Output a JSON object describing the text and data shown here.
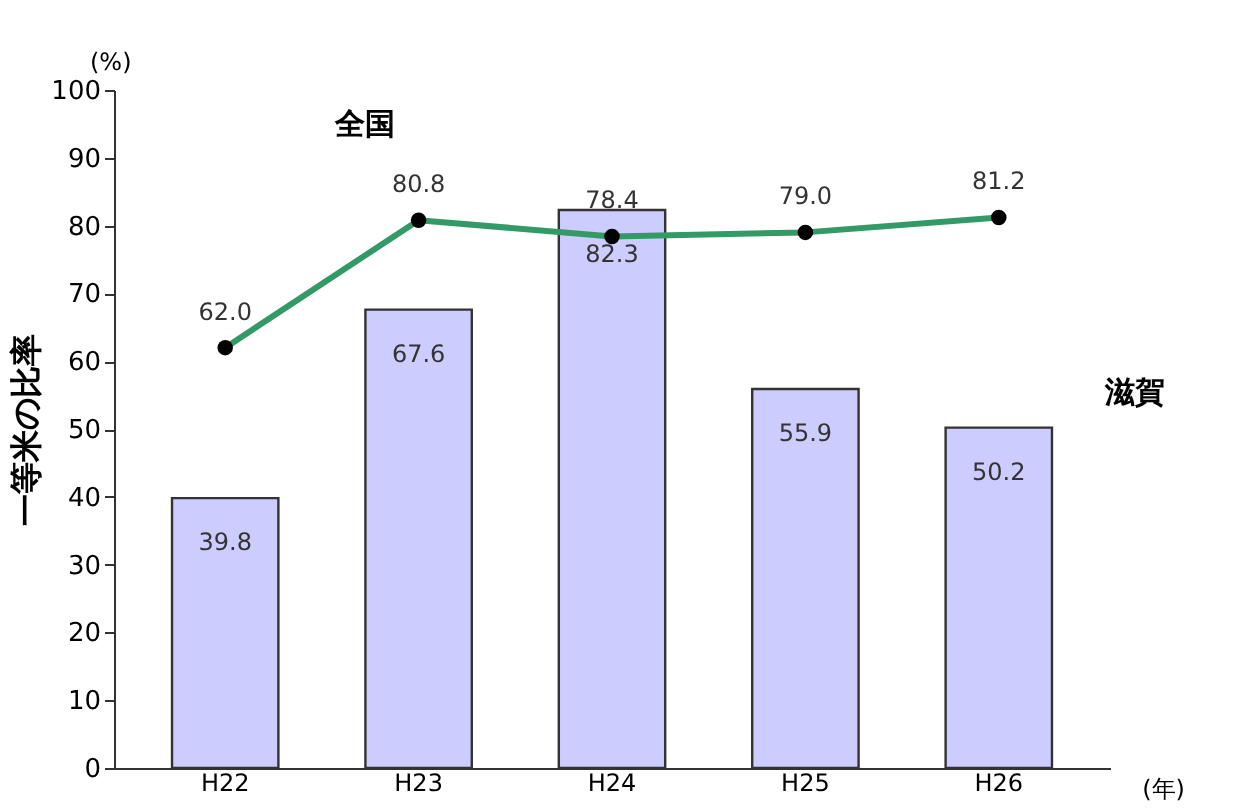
{
  "chart_data": {
    "type": "bar",
    "categories": [
      "H22",
      "H23",
      "H24",
      "H25",
      "H26"
    ],
    "ylabel": "一等米の比率",
    "xlabel": "(年)",
    "annotations": [
      "(%)"
    ],
    "ylim": [
      0,
      100
    ],
    "yticks": [
      0,
      10,
      20,
      30,
      40,
      50,
      60,
      70,
      80,
      90,
      100
    ],
    "grid": false,
    "data_labels": true,
    "series": [
      {
        "name": "滋賀",
        "color": "#ccccff",
        "values": [
          39.8,
          67.6,
          82.3,
          55.9,
          50.2
        ]
      },
      {
        "name": "全国",
        "type": "line",
        "color": "#339966",
        "marker": "circle",
        "values": [
          62.0,
          80.8,
          78.4,
          79.0,
          81.2
        ],
        "value_labels": [
          "62.0",
          "80.8",
          "78.4",
          "79.0",
          "81.2"
        ]
      }
    ]
  }
}
